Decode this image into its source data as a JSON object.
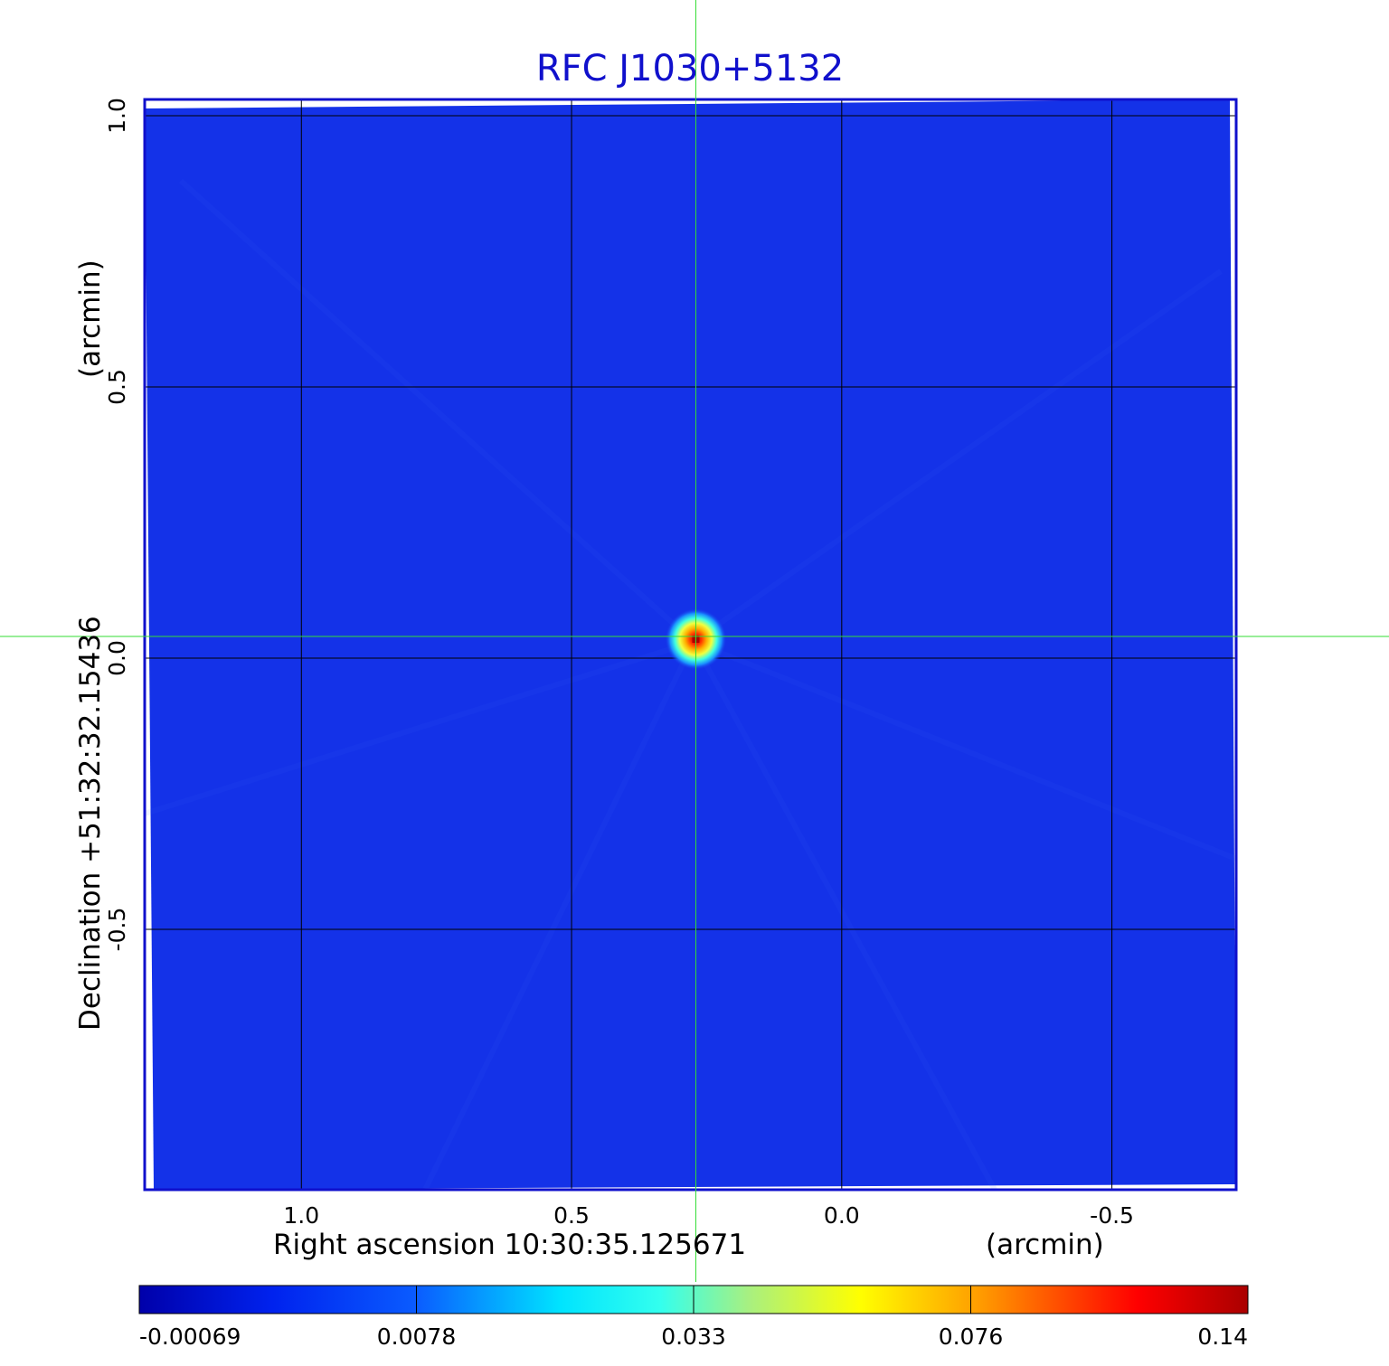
{
  "chart_data": {
    "type": "heatmap",
    "title": "RFC J1030+5132",
    "xlabel": "Right ascension  10:30:35.125671",
    "xunit": "(arcmin)",
    "ylabel": "Declination  +51:32:32.15436",
    "yunit": "(arcmin)",
    "xlim": [
      1.29,
      -0.73
    ],
    "ylim": [
      -0.98,
      1.03
    ],
    "x_ticks": [
      {
        "value": 1.0,
        "label": "1.0"
      },
      {
        "value": 0.5,
        "label": "0.5"
      },
      {
        "value": 0.0,
        "label": "0.0"
      },
      {
        "value": -0.5,
        "label": "-0.5"
      }
    ],
    "y_ticks": [
      {
        "value": 1.0,
        "label": "1.0"
      },
      {
        "value": 0.5,
        "label": "0.5"
      },
      {
        "value": 0.0,
        "label": "0.0"
      },
      {
        "value": -0.5,
        "label": "-0.5"
      }
    ],
    "grid": true,
    "crosshair": {
      "x": 0.27,
      "y": 0.04
    },
    "source_peak": {
      "x": 0.27,
      "y": 0.035,
      "value": 0.14
    },
    "colorbar": {
      "ticks": [
        "-0.00069",
        "0.0078",
        "0.033",
        "0.076",
        "0.14"
      ],
      "colormap": "jet"
    },
    "colors": {
      "title": "#1010cc",
      "background_field": "#1432e8",
      "crosshair": "#33dd33",
      "grid": "#000000",
      "frame": "#1010cc"
    }
  }
}
